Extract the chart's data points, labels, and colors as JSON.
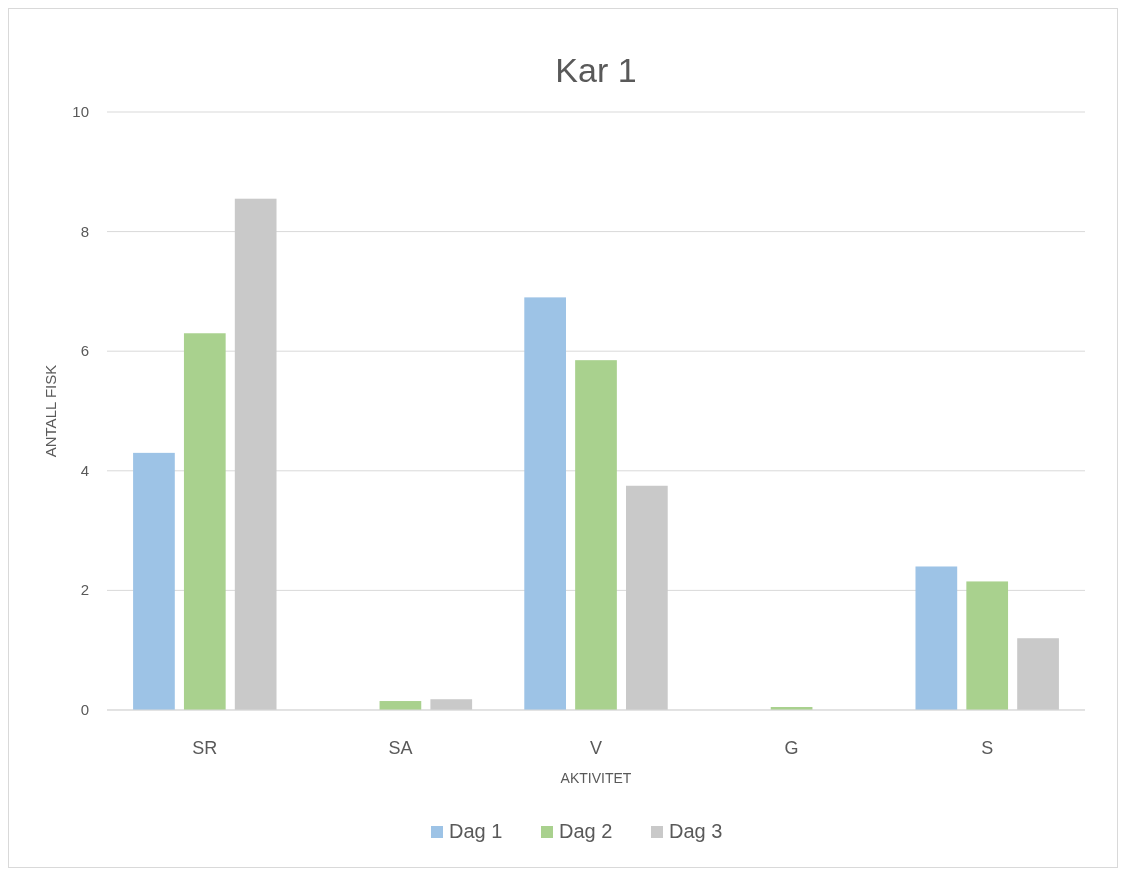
{
  "chart_data": {
    "type": "bar",
    "title": "Kar 1",
    "xlabel": "AKTIVITET",
    "ylabel": "ANTALL FISK",
    "categories": [
      "SR",
      "SA",
      "V",
      "G",
      "S"
    ],
    "series": [
      {
        "name": "Dag 1",
        "color": "#9dc3e6",
        "values": [
          4.3,
          0,
          6.9,
          0,
          2.4
        ]
      },
      {
        "name": "Dag 2",
        "color": "#a9d18e",
        "values": [
          6.3,
          0.15,
          5.85,
          0.05,
          2.15
        ]
      },
      {
        "name": "Dag 3",
        "color": "#c9c9c9",
        "values": [
          8.55,
          0.18,
          3.75,
          0,
          1.2
        ]
      }
    ],
    "ylim": [
      0,
      10
    ],
    "yticks": [
      0,
      2,
      4,
      6,
      8,
      10
    ],
    "grid": "y",
    "legend": "bottom"
  }
}
